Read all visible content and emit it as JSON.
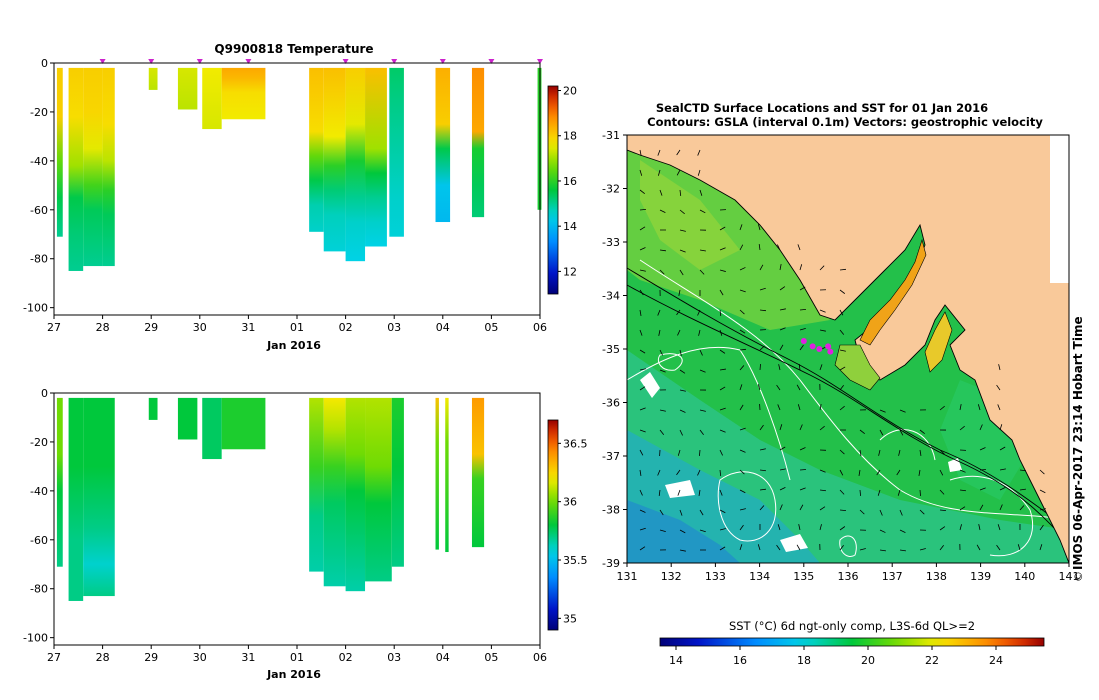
{
  "chart_data": [
    {
      "type": "heatmap",
      "id": "temperature-section",
      "title": "Q9900818  Temperature",
      "xlabel": "Jan 2016",
      "ylabel": "",
      "x_tick_labels": [
        "27",
        "28",
        "29",
        "30",
        "31",
        "01",
        "02",
        "03",
        "04",
        "05",
        "06"
      ],
      "xlim": [
        27,
        37
      ],
      "ylim": [
        -103,
        0
      ],
      "y_ticks": [
        0,
        -20,
        -40,
        -60,
        -80,
        -100
      ],
      "colorbar": {
        "min": 11,
        "max": 20.2,
        "ticks": [
          12,
          14,
          16,
          18,
          20
        ]
      },
      "profile_markers_x": [
        28,
        29,
        30,
        31,
        33,
        34,
        35,
        36,
        37
      ],
      "profiles": [
        {
          "x": 27.06,
          "w": 0.12,
          "depth": 71,
          "stops": [
            [
              -2,
              18
            ],
            [
              -22,
              18
            ],
            [
              -40,
              16.5
            ],
            [
              -55,
              15.5
            ],
            [
              -71,
              15
            ]
          ]
        },
        {
          "x": 27.3,
          "w": 0.3,
          "depth": 85,
          "stops": [
            [
              -2,
              18
            ],
            [
              -22,
              17.8
            ],
            [
              -42,
              17
            ],
            [
              -55,
              15.5
            ],
            [
              -70,
              15.2
            ],
            [
              -85,
              15
            ]
          ]
        },
        {
          "x": 27.6,
          "w": 0.4,
          "depth": 83,
          "stops": [
            [
              -2,
              18
            ],
            [
              -20,
              17.9
            ],
            [
              -35,
              17.5
            ],
            [
              -50,
              16.2
            ],
            [
              -60,
              15.4
            ],
            [
              -83,
              15
            ]
          ]
        },
        {
          "x": 28.0,
          "w": 0.25,
          "depth": 83,
          "stops": [
            [
              -2,
              18
            ],
            [
              -25,
              17.8
            ],
            [
              -40,
              17.2
            ],
            [
              -52,
              16
            ],
            [
              -62,
              15.4
            ],
            [
              -83,
              15
            ]
          ]
        },
        {
          "x": 28.95,
          "w": 0.18,
          "depth": 11,
          "stops": [
            [
              -2,
              17.4
            ],
            [
              -11,
              17.2
            ]
          ]
        },
        {
          "x": 29.55,
          "w": 0.4,
          "depth": 19,
          "stops": [
            [
              -2,
              17.4
            ],
            [
              -19,
              17.2
            ]
          ]
        },
        {
          "x": 30.05,
          "w": 0.4,
          "depth": 27,
          "stops": [
            [
              -2,
              17.6
            ],
            [
              -27,
              17.4
            ]
          ]
        },
        {
          "x": 30.45,
          "w": 0.9,
          "depth": 23,
          "stops": [
            [
              -2,
              18.5
            ],
            [
              -6,
              18.3
            ],
            [
              -12,
              17.8
            ],
            [
              -23,
              17.6
            ]
          ]
        },
        {
          "x": 32.25,
          "w": 0.3,
          "depth": 69,
          "stops": [
            [
              -2,
              18.2
            ],
            [
              -28,
              17.8
            ],
            [
              -38,
              16.5
            ],
            [
              -48,
              15.5
            ],
            [
              -58,
              14.8
            ],
            [
              -69,
              14.6
            ]
          ]
        },
        {
          "x": 32.55,
          "w": 0.45,
          "depth": 77,
          "stops": [
            [
              -2,
              18.2
            ],
            [
              -30,
              17.6
            ],
            [
              -42,
              16
            ],
            [
              -52,
              15.2
            ],
            [
              -62,
              14.7
            ],
            [
              -77,
              14.5
            ]
          ]
        },
        {
          "x": 33.0,
          "w": 0.4,
          "depth": 81,
          "stops": [
            [
              -2,
              18
            ],
            [
              -25,
              17.5
            ],
            [
              -40,
              15.8
            ],
            [
              -55,
              15
            ],
            [
              -65,
              14.6
            ],
            [
              -81,
              14.4
            ]
          ]
        },
        {
          "x": 33.4,
          "w": 0.45,
          "depth": 75,
          "stops": [
            [
              -2,
              18.2
            ],
            [
              -35,
              17
            ],
            [
              -45,
              15.6
            ],
            [
              -55,
              15
            ],
            [
              -65,
              14.6
            ],
            [
              -75,
              14.4
            ]
          ]
        },
        {
          "x": 33.9,
          "w": 0.3,
          "depth": 71,
          "stops": [
            [
              -2,
              15.3
            ],
            [
              -15,
              15.1
            ],
            [
              -40,
              14.8
            ],
            [
              -55,
              14.6
            ],
            [
              -71,
              14.5
            ]
          ]
        },
        {
          "x": 34.85,
          "w": 0.3,
          "depth": 65,
          "stops": [
            [
              -2,
              18.4
            ],
            [
              -25,
              18
            ],
            [
              -35,
              15.5
            ],
            [
              -50,
              14.2
            ],
            [
              -65,
              14
            ]
          ]
        },
        {
          "x": 35.6,
          "w": 0.25,
          "depth": 63,
          "stops": [
            [
              -2,
              18.8
            ],
            [
              -28,
              18.5
            ],
            [
              -35,
              15.8
            ],
            [
              -50,
              15.4
            ],
            [
              -63,
              15.2
            ]
          ]
        },
        {
          "x": 36.95,
          "w": 0.08,
          "depth": 60,
          "stops": [
            [
              -2,
              16
            ],
            [
              -60,
              15.8
            ]
          ]
        }
      ]
    },
    {
      "type": "heatmap",
      "id": "salinity-section",
      "title": "",
      "xlabel": "Jan 2016",
      "ylabel": "",
      "x_tick_labels": [
        "27",
        "28",
        "29",
        "30",
        "31",
        "01",
        "02",
        "03",
        "04",
        "05",
        "06"
      ],
      "xlim": [
        27,
        37
      ],
      "ylim": [
        -103,
        0
      ],
      "y_ticks": [
        0,
        -20,
        -40,
        -60,
        -80,
        -100
      ],
      "colorbar": {
        "min": 34.9,
        "max": 36.7,
        "ticks": [
          35,
          35.5,
          36,
          36.5
        ]
      },
      "profiles": [
        {
          "x": 27.06,
          "w": 0.12,
          "depth": 71,
          "stops": [
            [
              -2,
              36
            ],
            [
              -25,
              36
            ],
            [
              -40,
              35.8
            ],
            [
              -71,
              35.7
            ]
          ]
        },
        {
          "x": 27.3,
          "w": 0.3,
          "depth": 85,
          "stops": [
            [
              -2,
              35.8
            ],
            [
              -30,
              35.8
            ],
            [
              -60,
              35.7
            ],
            [
              -85,
              35.7
            ]
          ]
        },
        {
          "x": 27.6,
          "w": 0.65,
          "depth": 83,
          "stops": [
            [
              -2,
              35.8
            ],
            [
              -30,
              35.8
            ],
            [
              -55,
              35.7
            ],
            [
              -70,
              35.6
            ],
            [
              -83,
              35.7
            ]
          ]
        },
        {
          "x": 28.95,
          "w": 0.18,
          "depth": 11,
          "stops": [
            [
              -2,
              35.8
            ],
            [
              -11,
              35.8
            ]
          ]
        },
        {
          "x": 29.55,
          "w": 0.4,
          "depth": 19,
          "stops": [
            [
              -2,
              35.8
            ],
            [
              -19,
              35.8
            ]
          ]
        },
        {
          "x": 30.05,
          "w": 0.4,
          "depth": 27,
          "stops": [
            [
              -2,
              35.75
            ],
            [
              -27,
              35.75
            ]
          ]
        },
        {
          "x": 30.45,
          "w": 0.9,
          "depth": 23,
          "stops": [
            [
              -2,
              35.85
            ],
            [
              -23,
              35.85
            ]
          ]
        },
        {
          "x": 32.25,
          "w": 0.3,
          "depth": 73,
          "stops": [
            [
              -2,
              36.1
            ],
            [
              -30,
              35.9
            ],
            [
              -50,
              35.7
            ],
            [
              -73,
              35.65
            ]
          ]
        },
        {
          "x": 32.55,
          "w": 0.45,
          "depth": 79,
          "stops": [
            [
              -2,
              36.2
            ],
            [
              -15,
              36.1
            ],
            [
              -30,
              35.9
            ],
            [
              -45,
              35.75
            ],
            [
              -79,
              35.65
            ]
          ]
        },
        {
          "x": 33.0,
          "w": 0.4,
          "depth": 81,
          "stops": [
            [
              -2,
              36.1
            ],
            [
              -25,
              36
            ],
            [
              -40,
              35.8
            ],
            [
              -81,
              35.65
            ]
          ]
        },
        {
          "x": 33.4,
          "w": 0.55,
          "depth": 77,
          "stops": [
            [
              -2,
              36.1
            ],
            [
              -30,
              36
            ],
            [
              -45,
              35.8
            ],
            [
              -77,
              35.7
            ]
          ]
        },
        {
          "x": 33.95,
          "w": 0.25,
          "depth": 71,
          "stops": [
            [
              -2,
              35.85
            ],
            [
              -30,
              35.8
            ],
            [
              -71,
              35.7
            ]
          ]
        },
        {
          "x": 34.85,
          "w": 0.07,
          "depth": 64,
          "stops": [
            [
              -2,
              36.3
            ],
            [
              -20,
              36
            ],
            [
              -64,
              35.8
            ]
          ]
        },
        {
          "x": 35.05,
          "w": 0.07,
          "depth": 65,
          "stops": [
            [
              -2,
              36.2
            ],
            [
              -20,
              36
            ],
            [
              -65,
              35.8
            ]
          ]
        },
        {
          "x": 35.6,
          "w": 0.25,
          "depth": 63,
          "stops": [
            [
              -2,
              36.4
            ],
            [
              -25,
              36.3
            ],
            [
              -35,
              35.9
            ],
            [
              -63,
              35.8
            ]
          ]
        }
      ]
    },
    {
      "type": "map",
      "id": "sst-map",
      "title": "SealCTD Surface Locations and SST for 01 Jan 2016",
      "subtitle": "Contours: GSLA (interval 0.1m) Vectors: geostrophic velocity",
      "x_tick_labels": [
        "131",
        "132",
        "133",
        "134",
        "135",
        "136",
        "137",
        "138",
        "139",
        "140",
        "141"
      ],
      "y_tick_labels": [
        "-31",
        "-32",
        "-33",
        "-34",
        "-35",
        "-36",
        "-37",
        "-38",
        "-39"
      ],
      "xlim": [
        131,
        141
      ],
      "ylim": [
        -39,
        -31
      ],
      "side_label": "IMOS 06-Apr-2017 23:14 Hobart Time",
      "copyright": "©",
      "colorbar": {
        "label": "SST (°C) 6d ngt-only comp, L3S-6d QL>=2",
        "min": 13.5,
        "max": 25.5,
        "ticks": [
          14,
          16,
          18,
          20,
          22,
          24
        ]
      },
      "seal_locations": [
        [
          135.0,
          -34.85
        ],
        [
          135.2,
          -34.95
        ],
        [
          135.35,
          -35.0
        ],
        [
          135.55,
          -34.95
        ],
        [
          135.6,
          -35.05
        ]
      ]
    }
  ]
}
